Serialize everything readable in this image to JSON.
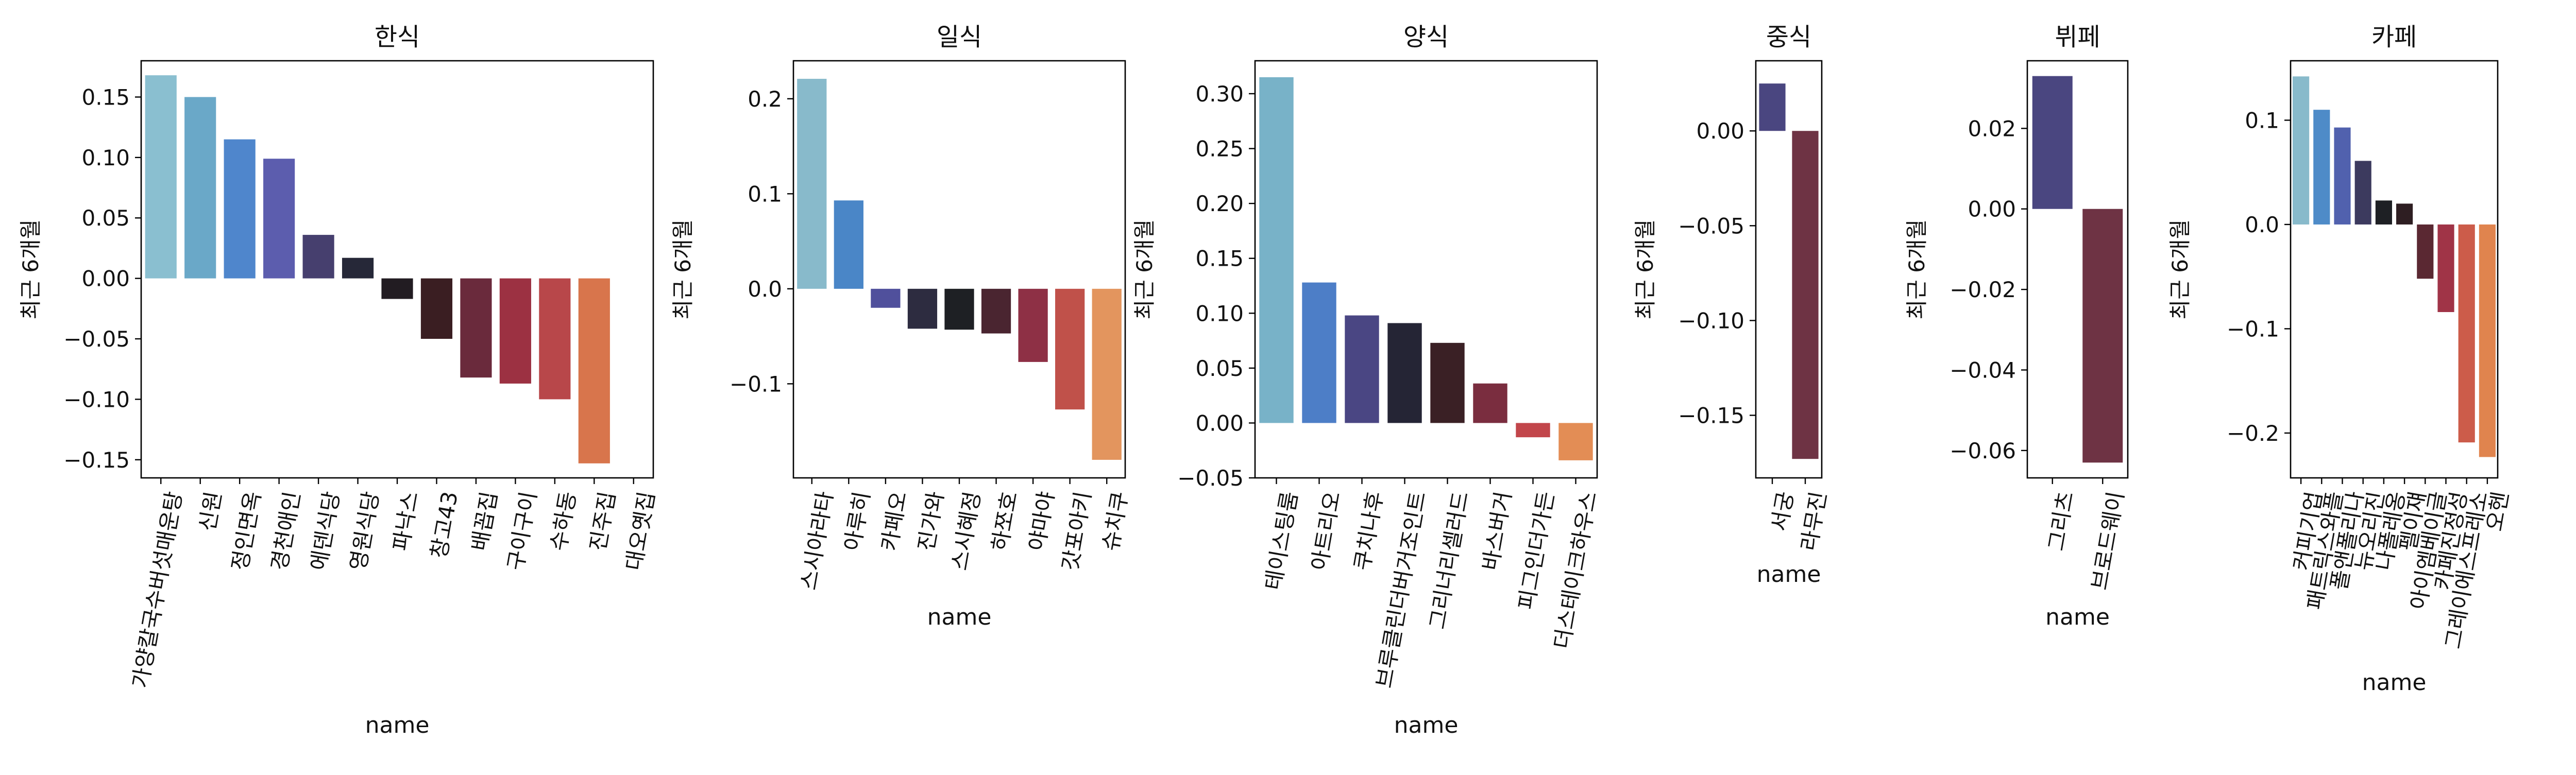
{
  "chart_data": [
    {
      "type": "bar",
      "title": "한식",
      "xlabel": "name",
      "ylabel": "최근 6개월",
      "ylim": [
        -0.165,
        0.18
      ],
      "yticks": [
        -0.15,
        -0.1,
        -0.05,
        0.0,
        0.05,
        0.1,
        0.15
      ],
      "ytick_labels": [
        "−0.15",
        "−0.10",
        "−0.05",
        "0.00",
        "0.05",
        "0.10",
        "0.15"
      ],
      "categories": [
        "가양칼국수버섯매운탕",
        "신원",
        "정인면옥",
        "경천애인",
        "에덴식당",
        "영원식당",
        "파낙스",
        "창고43",
        "배꼽집",
        "구이구이",
        "수하동",
        "진주집",
        "대오옛집"
      ],
      "values": [
        0.168,
        0.15,
        0.115,
        0.099,
        0.036,
        0.017,
        -0.017,
        -0.05,
        -0.082,
        -0.087,
        -0.1,
        -0.153,
        0.0
      ],
      "colors": [
        "#8ABFD0",
        "#6AA8C8",
        "#4F86CC",
        "#5C5DAE",
        "#463F6E",
        "#262838",
        "#221C22",
        "#3A1E22",
        "#6A2A3C",
        "#9C3142",
        "#B8474A",
        "#D8754C",
        "#E89A5C"
      ]
    },
    {
      "type": "bar",
      "title": "일식",
      "xlabel": "name",
      "ylabel": "최근 6개월",
      "ylim": [
        -0.199,
        0.24
      ],
      "yticks": [
        -0.1,
        0.0,
        0.1,
        0.2
      ],
      "ytick_labels": [
        "−0.1",
        "0.0",
        "0.1",
        "0.2"
      ],
      "categories": [
        "스시아라타",
        "아루히",
        "카페오",
        "진가와",
        "스시혜정",
        "하쪼호",
        "야마야",
        "갓포아키",
        "슈치쿠"
      ],
      "values": [
        0.221,
        0.093,
        -0.02,
        -0.042,
        -0.043,
        -0.047,
        -0.077,
        -0.127,
        -0.18
      ],
      "colors": [
        "#88BACB",
        "#4A86C7",
        "#50509C",
        "#2D2C40",
        "#1E2024",
        "#4A2530",
        "#8E3045",
        "#C0514A",
        "#E3955E"
      ]
    },
    {
      "type": "bar",
      "title": "양식",
      "xlabel": "name",
      "ylabel": "최근 6개월",
      "ylim": [
        -0.05,
        0.33
      ],
      "yticks": [
        -0.05,
        0.0,
        0.05,
        0.1,
        0.15,
        0.2,
        0.25,
        0.3
      ],
      "ytick_labels": [
        "−0.05",
        "0.00",
        "0.05",
        "0.10",
        "0.15",
        "0.20",
        "0.25",
        "0.30"
      ],
      "categories": [
        "테이스팅룸",
        "아트리오",
        "쿠치나후",
        "브루클린더버거조인트",
        "그리너리셀러드",
        "바스버거",
        "피그인더가든",
        "더스테이크하우스"
      ],
      "values": [
        0.315,
        0.128,
        0.098,
        0.091,
        0.073,
        0.036,
        -0.013,
        -0.034
      ],
      "colors": [
        "#78B2C8",
        "#4D7EC7",
        "#4A4683",
        "#252535",
        "#3A2025",
        "#7A2D3F",
        "#C2464B",
        "#E38D55"
      ]
    },
    {
      "type": "bar",
      "title": "중식",
      "xlabel": "name",
      "ylabel": "최근 6개월",
      "ylim": [
        -0.183,
        0.037
      ],
      "yticks": [
        -0.15,
        -0.1,
        -0.05,
        0.0
      ],
      "ytick_labels": [
        "−0.15",
        "−0.10",
        "−0.05",
        "0.00"
      ],
      "categories": [
        "서궁",
        "라무진"
      ],
      "values": [
        0.025,
        -0.173
      ],
      "colors": [
        "#4A4680",
        "#6E3344"
      ]
    },
    {
      "type": "bar",
      "title": "뷔페",
      "xlabel": "name",
      "ylabel": "최근 6개월",
      "ylim": [
        -0.0668,
        0.0368
      ],
      "yticks": [
        -0.06,
        -0.04,
        -0.02,
        0.0,
        0.02
      ],
      "ytick_labels": [
        "−0.06",
        "−0.04",
        "−0.02",
        "0.00",
        "0.02"
      ],
      "categories": [
        "그리츠",
        "브로드웨이"
      ],
      "values": [
        0.033,
        -0.063
      ],
      "colors": [
        "#4A4680",
        "#6E3344"
      ]
    },
    {
      "type": "bar",
      "title": "카페",
      "xlabel": "name",
      "ylabel": "최근 6개월",
      "ylim": [
        -0.243,
        0.157
      ],
      "yticks": [
        -0.2,
        -0.1,
        0.0,
        0.1
      ],
      "ytick_labels": [
        "−0.2",
        "−0.1",
        "0.0",
        "0.1"
      ],
      "categories": [
        "커피기업",
        "패트릭스와플",
        "폴앤폴리나",
        "뉴오리진",
        "나폴레옹",
        "펠이쟤",
        "아이엠베이글",
        "카페진정성",
        "그레이에스프레소",
        "오헨"
      ],
      "values": [
        0.142,
        0.11,
        0.093,
        0.061,
        0.023,
        0.02,
        -0.052,
        -0.084,
        -0.209,
        -0.223
      ],
      "colors": [
        "#88BACB",
        "#4E8BC8",
        "#5161AE",
        "#3C3A5E",
        "#1E2024",
        "#2E1E22",
        "#5A2832",
        "#A03447",
        "#CC5C4A",
        "#E0844E"
      ]
    }
  ]
}
